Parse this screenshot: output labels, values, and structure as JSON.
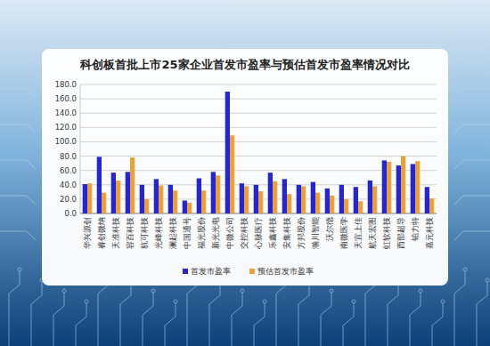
{
  "chart_data": {
    "type": "bar",
    "title": "科创板首批上市25家企业首发市盈率与预估首发市盈率情况对比",
    "categories": [
      "华兴源创",
      "睿创微纳",
      "天准科技",
      "容百科技",
      "杭可科技",
      "光峰科技",
      "澜起科技",
      "中国通号",
      "福光股份",
      "新光光电",
      "中微公司",
      "交控科技",
      "心脉医疗",
      "乐鑫科技",
      "安集科技",
      "方邦股份",
      "瀚川智能",
      "沃尔德",
      "南微医学",
      "天宜上佳",
      "航天宏图",
      "虹软科技",
      "西部超导",
      "铂力特",
      "嘉元科技"
    ],
    "series": [
      {
        "name": "首发市盈率",
        "color": "#2424d8",
        "values": [
          41,
          79,
          57,
          58,
          40,
          48,
          40,
          18,
          49,
          58,
          170,
          42,
          40,
          57,
          48,
          40,
          44,
          35,
          40,
          37,
          46,
          74,
          67,
          69,
          37
        ]
      },
      {
        "name": "预估首发市盈率",
        "color": "#e8a23a",
        "values": [
          42,
          29,
          46,
          78,
          20,
          39,
          32,
          15,
          32,
          53,
          109,
          38,
          31,
          45,
          27,
          38,
          29,
          25,
          20,
          17,
          38,
          72,
          80,
          73,
          21
        ]
      }
    ],
    "ylim": [
      0,
      180
    ],
    "yticks": [
      {
        "value": 0,
        "label": "0.0"
      },
      {
        "value": 20,
        "label": "20.0"
      },
      {
        "value": 40,
        "label": "40.0"
      },
      {
        "value": 60,
        "label": "60.0"
      },
      {
        "value": 80,
        "label": "80.0"
      },
      {
        "value": 100,
        "label": "100.0"
      },
      {
        "value": 120,
        "label": "120.0"
      },
      {
        "value": 140,
        "label": "140.0"
      },
      {
        "value": 160,
        "label": "160.0"
      },
      {
        "value": 180,
        "label": "180.0"
      }
    ],
    "grid": true,
    "legend": "bottom"
  }
}
